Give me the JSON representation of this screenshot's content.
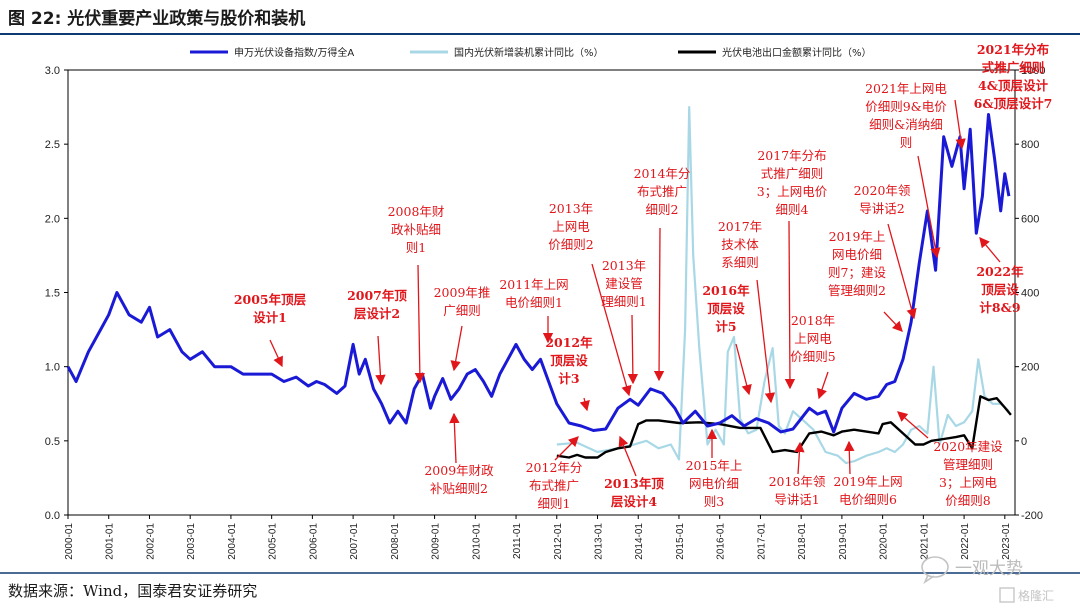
{
  "figure_title": "图 22:  光伏重要产业政策与股价和装机",
  "source_note": "数据来源：Wind，国泰君安证券研究",
  "watermark": {
    "main": "一观大势",
    "sub": "格隆汇",
    "icon": "chat-bubble-icon"
  },
  "colors": {
    "blue": "#1a1ad6",
    "lightblue": "#a8d8e6",
    "black": "#000000",
    "red": "#e0161b",
    "title_bar": "#0e3a73"
  },
  "chart_data": {
    "type": "line",
    "title": "",
    "xlabel": "",
    "ylabel": "",
    "left_ylim": [
      0,
      3.0
    ],
    "right_ylim": [
      -200,
      1000
    ],
    "left_ticks": [
      "0.0",
      "0.5",
      "1.0",
      "1.5",
      "2.0",
      "2.5",
      "3.0"
    ],
    "right_ticks": [
      "-200",
      "0",
      "200",
      "400",
      "600",
      "800",
      "1000"
    ],
    "x_ticks": [
      "2000-01",
      "2001-01",
      "2002-01",
      "2003-01",
      "2004-01",
      "2005-01",
      "2006-01",
      "2007-01",
      "2008-01",
      "2009-01",
      "2010-01",
      "2011-01",
      "2012-01",
      "2013-01",
      "2014-01",
      "2015-01",
      "2016-01",
      "2017-01",
      "2018-01",
      "2019-01",
      "2020-01",
      "2021-01",
      "2022-01",
      "2023-01"
    ],
    "x_range": [
      2000.0,
      2023.25
    ],
    "legend_position": "top",
    "series": [
      {
        "name": "申万光伏设备指数/万得全A",
        "axis": "left",
        "color": "#1a1ad6",
        "x": [
          2000.0,
          2000.2,
          2000.5,
          2000.8,
          2001.0,
          2001.2,
          2001.5,
          2001.8,
          2002.0,
          2002.2,
          2002.5,
          2002.8,
          2003.0,
          2003.3,
          2003.6,
          2004.0,
          2004.3,
          2004.6,
          2005.0,
          2005.3,
          2005.6,
          2005.9,
          2006.1,
          2006.3,
          2006.6,
          2006.8,
          2007.0,
          2007.15,
          2007.3,
          2007.5,
          2007.7,
          2007.9,
          2008.1,
          2008.3,
          2008.5,
          2008.7,
          2008.9,
          2009.0,
          2009.2,
          2009.4,
          2009.6,
          2009.8,
          2010.0,
          2010.2,
          2010.4,
          2010.6,
          2010.8,
          2011.0,
          2011.2,
          2011.4,
          2011.6,
          2011.8,
          2012.0,
          2012.3,
          2012.6,
          2012.9,
          2013.2,
          2013.5,
          2013.8,
          2014.0,
          2014.3,
          2014.6,
          2014.9,
          2015.1,
          2015.4,
          2015.7,
          2016.0,
          2016.3,
          2016.6,
          2016.9,
          2017.2,
          2017.5,
          2017.8,
          2018.0,
          2018.2,
          2018.4,
          2018.6,
          2018.8,
          2019.0,
          2019.3,
          2019.6,
          2019.9,
          2020.1,
          2020.3,
          2020.5,
          2020.7,
          2020.9,
          2021.1,
          2021.3,
          2021.5,
          2021.7,
          2021.9,
          2022.0,
          2022.15,
          2022.3,
          2022.45,
          2022.6,
          2022.75,
          2022.9,
          2023.0,
          2023.1
        ],
        "values": [
          1.0,
          0.9,
          1.1,
          1.25,
          1.35,
          1.5,
          1.35,
          1.3,
          1.4,
          1.2,
          1.25,
          1.1,
          1.05,
          1.1,
          1.0,
          1.0,
          0.95,
          0.95,
          0.95,
          0.9,
          0.93,
          0.87,
          0.9,
          0.88,
          0.82,
          0.87,
          1.15,
          0.95,
          1.05,
          0.85,
          0.75,
          0.62,
          0.7,
          0.62,
          0.85,
          0.95,
          0.72,
          0.8,
          0.92,
          0.78,
          0.85,
          0.95,
          0.98,
          0.9,
          0.8,
          0.95,
          1.05,
          1.15,
          1.05,
          0.98,
          1.05,
          0.9,
          0.75,
          0.62,
          0.6,
          0.57,
          0.58,
          0.72,
          0.78,
          0.74,
          0.85,
          0.82,
          0.72,
          0.62,
          0.7,
          0.6,
          0.62,
          0.67,
          0.6,
          0.65,
          0.62,
          0.56,
          0.58,
          0.65,
          0.72,
          0.68,
          0.7,
          0.56,
          0.72,
          0.82,
          0.78,
          0.8,
          0.88,
          0.9,
          1.05,
          1.3,
          1.7,
          2.05,
          1.65,
          2.55,
          2.35,
          2.55,
          2.2,
          2.6,
          1.9,
          2.15,
          2.7,
          2.4,
          2.05,
          2.3,
          2.15
        ]
      },
      {
        "name": "国内光伏新增装机累计同比（%）",
        "axis": "right",
        "color": "#a8d8e6",
        "x": [
          2012.0,
          2012.5,
          2013.0,
          2013.5,
          2013.9,
          2014.2,
          2014.5,
          2014.8,
          2015.0,
          2015.15,
          2015.25,
          2015.35,
          2015.5,
          2015.7,
          2015.9,
          2016.1,
          2016.2,
          2016.35,
          2016.5,
          2016.7,
          2016.9,
          2017.1,
          2017.3,
          2017.45,
          2017.6,
          2017.8,
          2018.0,
          2018.3,
          2018.6,
          2018.9,
          2019.1,
          2019.3,
          2019.6,
          2019.9,
          2020.1,
          2020.3,
          2020.5,
          2020.7,
          2020.9,
          2021.1,
          2021.25,
          2021.4,
          2021.6,
          2021.8,
          2022.0,
          2022.2,
          2022.35,
          2022.5,
          2022.7,
          2022.9,
          2023.1
        ],
        "values": [
          -10,
          -5,
          -30,
          -20,
          -10,
          0,
          -20,
          -10,
          -50,
          300,
          900,
          500,
          250,
          -10,
          30,
          -10,
          240,
          280,
          60,
          20,
          30,
          160,
          250,
          40,
          20,
          80,
          60,
          30,
          -30,
          -40,
          -60,
          -55,
          -40,
          -30,
          -20,
          -30,
          -10,
          30,
          40,
          20,
          200,
          -10,
          70,
          40,
          50,
          80,
          220,
          120,
          100,
          100,
          80
        ]
      },
      {
        "name": "光伏电池出口金额累计同比（%）",
        "axis": "right",
        "color": "#000000",
        "x": [
          2012.0,
          2012.3,
          2012.5,
          2012.7,
          2013.0,
          2013.2,
          2013.5,
          2013.8,
          2014.0,
          2014.2,
          2014.5,
          2015.0,
          2015.5,
          2016.0,
          2016.5,
          2017.0,
          2017.3,
          2017.6,
          2017.9,
          2018.2,
          2018.5,
          2018.8,
          2019.0,
          2019.3,
          2019.6,
          2019.9,
          2020.0,
          2020.2,
          2020.5,
          2020.8,
          2021.0,
          2021.2,
          2021.5,
          2021.8,
          2022.0,
          2022.2,
          2022.4,
          2022.6,
          2022.8,
          2023.0,
          2023.15
        ],
        "values": [
          -40,
          -45,
          -38,
          -45,
          -45,
          -30,
          -20,
          -15,
          45,
          55,
          55,
          48,
          50,
          45,
          35,
          35,
          -30,
          -25,
          -30,
          20,
          25,
          15,
          25,
          30,
          25,
          20,
          45,
          50,
          20,
          -10,
          -10,
          0,
          5,
          10,
          15,
          -20,
          120,
          110,
          115,
          90,
          70
        ]
      }
    ],
    "annotations": [
      {
        "lines": [
          "2005年顶层",
          "设计1"
        ],
        "bold": true
      },
      {
        "lines": [
          "2007年顶",
          "层设计2"
        ],
        "bold": true
      },
      {
        "lines": [
          "2008年财",
          "政补贴细",
          "则1"
        ],
        "bold": false
      },
      {
        "lines": [
          "2009年推",
          "广细则"
        ],
        "bold": false
      },
      {
        "lines": [
          "2009年财政",
          "补贴细则2"
        ],
        "bold": false
      },
      {
        "lines": [
          "2011年上网",
          "电价细则1"
        ],
        "bold": false
      },
      {
        "lines": [
          "2012年",
          "顶层设",
          "计3"
        ],
        "bold": true
      },
      {
        "lines": [
          "2012年分",
          "布式推广",
          "细则1"
        ],
        "bold": false
      },
      {
        "lines": [
          "2013年",
          "上网电",
          "价细则2"
        ],
        "bold": false
      },
      {
        "lines": [
          "2013年",
          "建设管",
          "理细则1"
        ],
        "bold": false
      },
      {
        "lines": [
          "2013年顶",
          "层设计4"
        ],
        "bold": true
      },
      {
        "lines": [
          "2014年分",
          "布式推广",
          "细则2"
        ],
        "bold": false
      },
      {
        "lines": [
          "2015年上",
          "网电价细",
          "则3"
        ],
        "bold": false
      },
      {
        "lines": [
          "2016年",
          "顶层设",
          "计5"
        ],
        "bold": true
      },
      {
        "lines": [
          "2017年",
          "技术体",
          "系细则"
        ],
        "bold": false
      },
      {
        "lines": [
          "2017年分布",
          "式推广细则",
          "3；上网电价",
          "细则4"
        ],
        "bold": false
      },
      {
        "lines": [
          "2018年",
          "上网电",
          "价细则5"
        ],
        "bold": false
      },
      {
        "lines": [
          "2018年领",
          "导讲话1"
        ],
        "bold": false
      },
      {
        "lines": [
          "2019年上",
          "网电价细",
          "则7；建设",
          "管理细则2"
        ],
        "bold": false
      },
      {
        "lines": [
          "2019年上网",
          "电价细则6"
        ],
        "bold": false
      },
      {
        "lines": [
          "2020年领",
          "导讲话2"
        ],
        "bold": false
      },
      {
        "lines": [
          "2021年上网电",
          "价细则9&电价",
          "细则&消纳细",
          "则"
        ],
        "bold": false
      },
      {
        "lines": [
          "2021年分布",
          "式推广细则",
          "4&顶层设计",
          "6&顶层设计7"
        ],
        "bold": true
      },
      {
        "lines": [
          "2022年",
          "顶层设",
          "计8&9"
        ],
        "bold": true
      },
      {
        "lines": [
          "2020年建设",
          "管理细则",
          "3；上网电",
          "价细则8"
        ],
        "bold": false
      }
    ]
  }
}
